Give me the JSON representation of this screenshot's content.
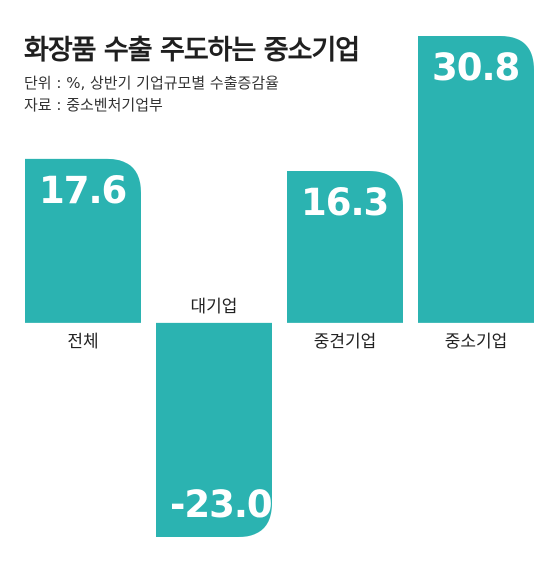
{
  "chart_data": {
    "type": "bar",
    "title": "화장품 수출 주도하는 중소기업",
    "unit_note": "단위 : %, 상반기 기업규모별 수출증감율",
    "source": "자료 : 중소벤처기업부",
    "categories": [
      "전체",
      "대기업",
      "중견기업",
      "중소기업"
    ],
    "values": [
      17.6,
      -23.0,
      16.3,
      30.8
    ],
    "value_labels": [
      "17.6",
      "-23.0",
      "16.3",
      "30.8"
    ],
    "ylim": [
      -23.0,
      30.8
    ],
    "grid": false,
    "legend": "none",
    "bar_color": "#2bb3b1"
  }
}
